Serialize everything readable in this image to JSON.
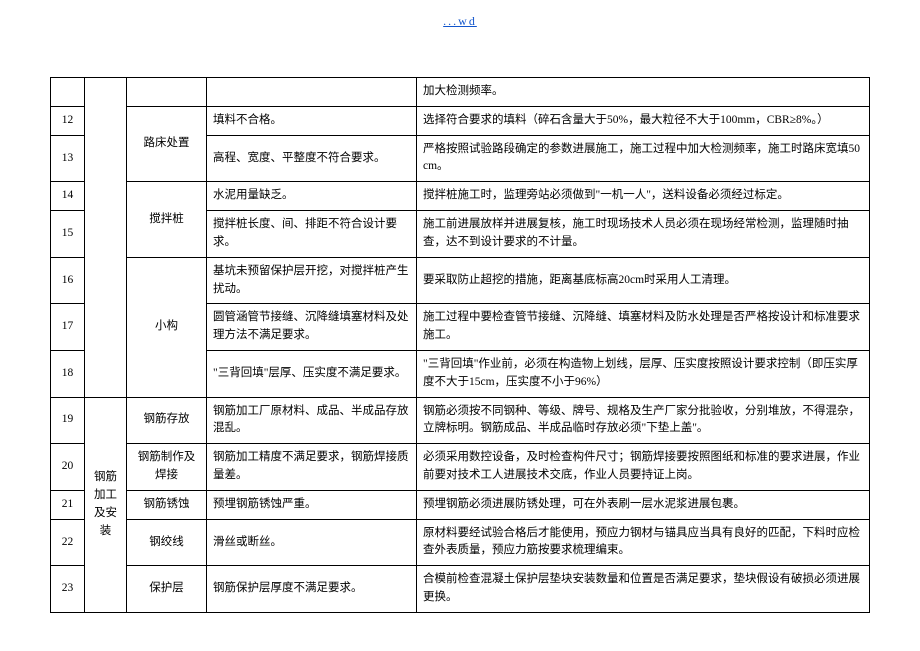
{
  "header": {
    "link_text": "...wd"
  },
  "columns": {
    "widths": {
      "idx": 34,
      "cat1": 42,
      "cat2": 80,
      "issue": 210
    }
  },
  "rows": [
    {
      "idx": "",
      "cat1": "",
      "cat2": "",
      "issue": "",
      "desc": "加大检测频率。"
    },
    {
      "idx": "12",
      "cat1": "",
      "cat2": "路床处置",
      "issue": "填料不合格。",
      "desc": "选择符合要求的填料（碎石含量大于50%，最大粒径不大于100mm，CBR≥8%。）"
    },
    {
      "idx": "13",
      "cat1": "",
      "cat2": "",
      "issue": "高程、宽度、平整度不符合要求。",
      "desc": "严格按照试验路段确定的参数进展施工，施工过程中加大检测频率，施工时路床宽填50cm。"
    },
    {
      "idx": "14",
      "cat1": "",
      "cat2": "搅拌桩",
      "issue": "水泥用量缺乏。",
      "desc": "搅拌桩施工时，监理旁站必须做到\"一机一人\"，送料设备必须经过标定。"
    },
    {
      "idx": "15",
      "cat1": "",
      "cat2": "",
      "issue": "搅拌桩长度、间、排距不符合设计要求。",
      "desc": "施工前进展放样并进展复核，施工时现场技术人员必须在现场经常检测，监理随时抽查，达不到设计要求的不计量。"
    },
    {
      "idx": "16",
      "cat1": "",
      "cat2": "小构",
      "issue": "基坑未预留保护层开挖，对搅拌桩产生扰动。",
      "desc": "要采取防止超挖的措施，距离基底标高20cm时采用人工清理。"
    },
    {
      "idx": "17",
      "cat1": "",
      "cat2": "",
      "issue": "圆管涵管节接缝、沉降缝填塞材料及处理方法不满足要求。",
      "desc": "施工过程中要检查管节接缝、沉降缝、填塞材料及防水处理是否严格按设计和标准要求施工。"
    },
    {
      "idx": "18",
      "cat1": "",
      "cat2": "",
      "issue": "\"三背回填\"层厚、压实度不满足要求。",
      "desc": "\"三背回填\"作业前，必须在构造物上划线，层厚、压实度按照设计要求控制（即压实厚度不大于15cm，压实度不小于96%）"
    },
    {
      "idx": "19",
      "cat1": "钢筋加工及安装",
      "cat2": "钢筋存放",
      "issue": "钢筋加工厂原材料、成品、半成品存放混乱。",
      "desc": "钢筋必须按不同钢种、等级、牌号、规格及生产厂家分批验收，分别堆放，不得混杂，立牌标明。钢筋成品、半成品临时存放必须\"下垫上盖\"。"
    },
    {
      "idx": "20",
      "cat1": "",
      "cat2": "钢筋制作及焊接",
      "issue": "钢筋加工精度不满足要求，钢筋焊接质量差。",
      "desc": "必须采用数控设备，及时检查构件尺寸；钢筋焊接要按照图纸和标准的要求进展，作业前要对技术工人进展技术交底，作业人员要持证上岗。"
    },
    {
      "idx": "21",
      "cat1": "",
      "cat2": "钢筋锈蚀",
      "issue": "预埋钢筋锈蚀严重。",
      "desc": "预埋钢筋必须进展防锈处理，可在外表刷一层水泥浆进展包裹。"
    },
    {
      "idx": "22",
      "cat1": "",
      "cat2": "钢绞线",
      "issue": "滑丝或断丝。",
      "desc": "原材料要经试验合格后才能使用，预应力钢材与锚具应当具有良好的匹配，下料时应检查外表质量，预应力筋按要求梳理编束。"
    },
    {
      "idx": "23",
      "cat1": "",
      "cat2": "保护层",
      "issue": "钢筋保护层厚度不满足要求。",
      "desc": "合模前检查混凝土保护层垫块安装数量和位置是否满足要求，垫块假设有破损必须进展更换。"
    }
  ]
}
